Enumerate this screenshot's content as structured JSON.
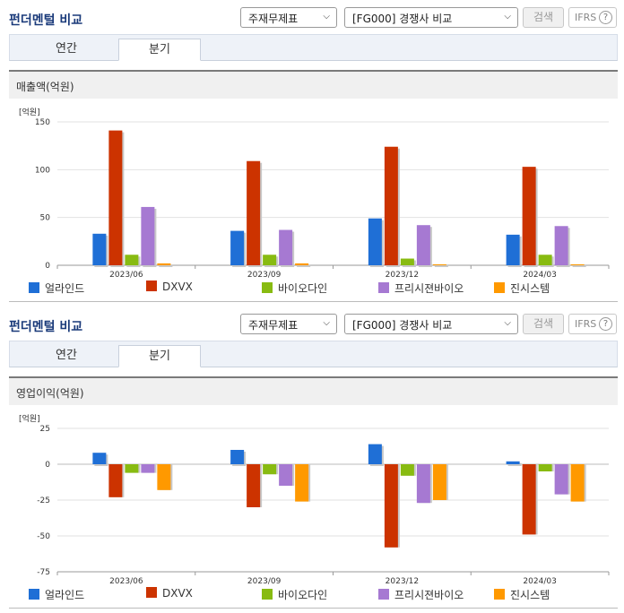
{
  "panels": [
    {
      "section_title": "펀더멘털 비교",
      "select_item": "주재무제표",
      "select_compare": "[FG000] 경쟁사 비교",
      "search_label": "검색",
      "ifrs_label": "IFRS",
      "help_glyph": "?",
      "tab_annual": "연간",
      "tab_quarter": "분기",
      "chart_header": "매출액(억원)",
      "unit_label": "[억원]"
    },
    {
      "section_title": "펀더멘털 비교",
      "select_item": "주재무제표",
      "select_compare": "[FG000] 경쟁사 비교",
      "search_label": "검색",
      "ifrs_label": "IFRS",
      "help_glyph": "?",
      "tab_annual": "연간",
      "tab_quarter": "분기",
      "chart_header": "영업이익(억원)",
      "unit_label": "[억원]"
    }
  ],
  "icons": {
    "dropdown": "chevron-down-icon",
    "help": "help-circle-icon"
  },
  "colors": {
    "series": [
      "#1f6fd6",
      "#cc3300",
      "#88bb11",
      "#a679d2",
      "#ff9900"
    ],
    "title": "#1a3a7a"
  },
  "chart_data": [
    {
      "type": "bar",
      "title": "매출액(억원)",
      "unit": "[억원]",
      "categories": [
        "2023/06",
        "2023/09",
        "2023/12",
        "2024/03"
      ],
      "ylim": [
        0,
        150
      ],
      "yticks": [
        0,
        50,
        100,
        150
      ],
      "series": [
        {
          "name": "얼라인드",
          "values": [
            33,
            36,
            49,
            32
          ]
        },
        {
          "name": "DXVX",
          "values": [
            141,
            109,
            124,
            103
          ]
        },
        {
          "name": "바이오다인",
          "values": [
            11,
            11,
            7,
            11
          ]
        },
        {
          "name": "프리시젼바이오",
          "values": [
            61,
            37,
            42,
            41
          ]
        },
        {
          "name": "진시스템",
          "values": [
            2,
            2,
            1,
            1
          ]
        }
      ],
      "legend_position": "bottom",
      "grid": true
    },
    {
      "type": "bar",
      "title": "영업이익(억원)",
      "unit": "[억원]",
      "categories": [
        "2023/06",
        "2023/09",
        "2023/12",
        "2024/03"
      ],
      "ylim": [
        -75,
        25
      ],
      "yticks": [
        -75,
        -50,
        -25,
        0,
        25
      ],
      "series": [
        {
          "name": "얼라인드",
          "values": [
            8,
            10,
            14,
            2
          ]
        },
        {
          "name": "DXVX",
          "values": [
            -23,
            -30,
            -58,
            -49
          ]
        },
        {
          "name": "바이오다인",
          "values": [
            -6,
            -7,
            -8,
            -5
          ]
        },
        {
          "name": "프리시젼바이오",
          "values": [
            -6,
            -15,
            -27,
            -21
          ]
        },
        {
          "name": "진시스템",
          "values": [
            -18,
            -26,
            -25,
            -26
          ]
        }
      ],
      "legend_position": "bottom",
      "grid": true
    }
  ]
}
